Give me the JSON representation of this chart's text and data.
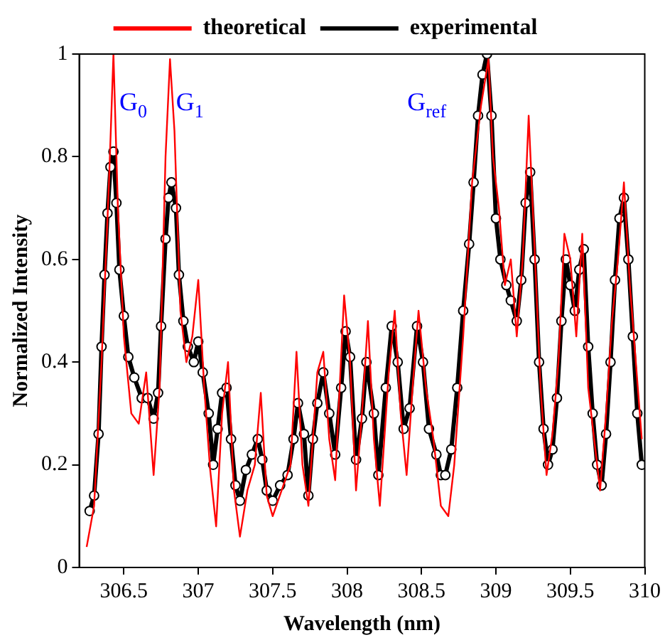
{
  "chart_data": {
    "type": "line",
    "xlabel": "Wavelength (nm)",
    "ylabel": "Normalized Intensity",
    "xlim": [
      306.2,
      310
    ],
    "xticks": [
      306.5,
      307,
      307.5,
      308,
      308.5,
      309,
      309.5,
      310
    ],
    "ylim": [
      0,
      1
    ],
    "yticks": [
      0,
      0.2,
      0.4,
      0.6,
      0.8,
      1
    ],
    "grid": false,
    "legend": "top",
    "line_style": "solid",
    "annotations": [
      {
        "text": "G$_{0}$",
        "x": 306.47,
        "y": 0.89
      },
      {
        "text": "G$_{1}$",
        "x": 306.85,
        "y": 0.89
      },
      "G$_{ref}$"
    ],
    "series": [
      {
        "name": "theoretical",
        "color": "#ff0000",
        "marker": "none",
        "x": [
          306.25,
          306.3,
          306.35,
          306.4,
          306.43,
          306.46,
          306.5,
          306.55,
          306.6,
          306.65,
          306.7,
          306.74,
          306.78,
          306.81,
          306.84,
          306.88,
          306.92,
          306.96,
          307,
          307.04,
          307.08,
          307.12,
          307.16,
          307.2,
          307.24,
          307.28,
          307.33,
          307.38,
          307.42,
          307.46,
          307.5,
          307.56,
          307.62,
          307.66,
          307.7,
          307.74,
          307.8,
          307.84,
          307.88,
          307.92,
          307.98,
          308.02,
          308.06,
          308.1,
          308.14,
          308.18,
          308.22,
          308.28,
          308.32,
          308.36,
          308.4,
          308.44,
          308.48,
          308.53,
          308.58,
          308.63,
          308.68,
          308.72,
          308.78,
          308.84,
          308.9,
          308.95,
          308.98,
          309.02,
          309.06,
          309.1,
          309.14,
          309.18,
          309.22,
          309.26,
          309.3,
          309.34,
          309.38,
          309.42,
          309.46,
          309.5,
          309.54,
          309.58,
          309.62,
          309.66,
          309.7,
          309.74,
          309.78,
          309.82,
          309.86,
          309.9,
          309.94,
          309.98
        ],
        "values": [
          0.04,
          0.12,
          0.4,
          0.75,
          1,
          0.7,
          0.45,
          0.3,
          0.28,
          0.38,
          0.18,
          0.35,
          0.8,
          0.99,
          0.85,
          0.5,
          0.4,
          0.45,
          0.56,
          0.35,
          0.19,
          0.08,
          0.3,
          0.4,
          0.15,
          0.06,
          0.15,
          0.2,
          0.34,
          0.14,
          0.1,
          0.15,
          0.2,
          0.42,
          0.2,
          0.12,
          0.38,
          0.42,
          0.25,
          0.17,
          0.53,
          0.4,
          0.15,
          0.3,
          0.48,
          0.25,
          0.12,
          0.38,
          0.5,
          0.3,
          0.18,
          0.35,
          0.5,
          0.35,
          0.25,
          0.12,
          0.1,
          0.2,
          0.45,
          0.75,
          0.9,
          0.99,
          0.8,
          0.7,
          0.55,
          0.6,
          0.45,
          0.6,
          0.88,
          0.62,
          0.35,
          0.18,
          0.26,
          0.4,
          0.65,
          0.6,
          0.45,
          0.65,
          0.35,
          0.25,
          0.15,
          0.3,
          0.48,
          0.6,
          0.75,
          0.55,
          0.4,
          0.25
        ]
      },
      {
        "name": "experimental",
        "color": "#000000",
        "marker": "circle",
        "x": [
          306.27,
          306.3,
          306.33,
          306.35,
          306.37,
          306.39,
          306.41,
          306.43,
          306.45,
          306.47,
          306.5,
          306.53,
          306.57,
          306.62,
          306.66,
          306.7,
          306.73,
          306.75,
          306.78,
          306.8,
          306.82,
          306.85,
          306.87,
          306.9,
          306.93,
          306.97,
          307,
          307.03,
          307.07,
          307.1,
          307.13,
          307.16,
          307.19,
          307.22,
          307.25,
          307.28,
          307.32,
          307.36,
          307.4,
          307.43,
          307.46,
          307.5,
          307.55,
          307.6,
          307.64,
          307.67,
          307.71,
          307.74,
          307.77,
          307.8,
          307.84,
          307.88,
          307.92,
          307.96,
          307.99,
          308.02,
          308.06,
          308.1,
          308.13,
          308.18,
          308.21,
          308.26,
          308.3,
          308.34,
          308.38,
          308.42,
          308.47,
          308.51,
          308.55,
          308.6,
          308.63,
          308.66,
          308.7,
          308.74,
          308.78,
          308.82,
          308.85,
          308.88,
          308.91,
          308.94,
          308.97,
          309,
          309.03,
          309.07,
          309.1,
          309.14,
          309.17,
          309.2,
          309.23,
          309.26,
          309.29,
          309.32,
          309.35,
          309.38,
          309.41,
          309.44,
          309.47,
          309.5,
          309.53,
          309.56,
          309.59,
          309.62,
          309.65,
          309.68,
          309.71,
          309.74,
          309.77,
          309.8,
          309.83,
          309.86,
          309.89,
          309.92,
          309.95,
          309.98
        ],
        "values": [
          0.11,
          0.14,
          0.26,
          0.43,
          0.57,
          0.69,
          0.78,
          0.81,
          0.71,
          0.58,
          0.49,
          0.41,
          0.37,
          0.33,
          0.33,
          0.29,
          0.34,
          0.47,
          0.64,
          0.72,
          0.75,
          0.7,
          0.57,
          0.48,
          0.43,
          0.4,
          0.44,
          0.38,
          0.3,
          0.2,
          0.27,
          0.34,
          0.35,
          0.25,
          0.16,
          0.13,
          0.19,
          0.22,
          0.25,
          0.21,
          0.15,
          0.13,
          0.16,
          0.18,
          0.25,
          0.32,
          0.26,
          0.14,
          0.25,
          0.32,
          0.38,
          0.3,
          0.22,
          0.35,
          0.46,
          0.41,
          0.21,
          0.29,
          0.4,
          0.3,
          0.18,
          0.35,
          0.47,
          0.4,
          0.27,
          0.31,
          0.47,
          0.4,
          0.27,
          0.22,
          0.18,
          0.18,
          0.23,
          0.35,
          0.5,
          0.63,
          0.75,
          0.88,
          0.96,
          1,
          0.88,
          0.68,
          0.6,
          0.55,
          0.52,
          0.48,
          0.56,
          0.71,
          0.77,
          0.6,
          0.4,
          0.27,
          0.2,
          0.23,
          0.33,
          0.48,
          0.6,
          0.55,
          0.5,
          0.58,
          0.62,
          0.43,
          0.3,
          0.2,
          0.16,
          0.26,
          0.4,
          0.56,
          0.68,
          0.72,
          0.6,
          0.45,
          0.3,
          0.2
        ]
      }
    ]
  }
}
